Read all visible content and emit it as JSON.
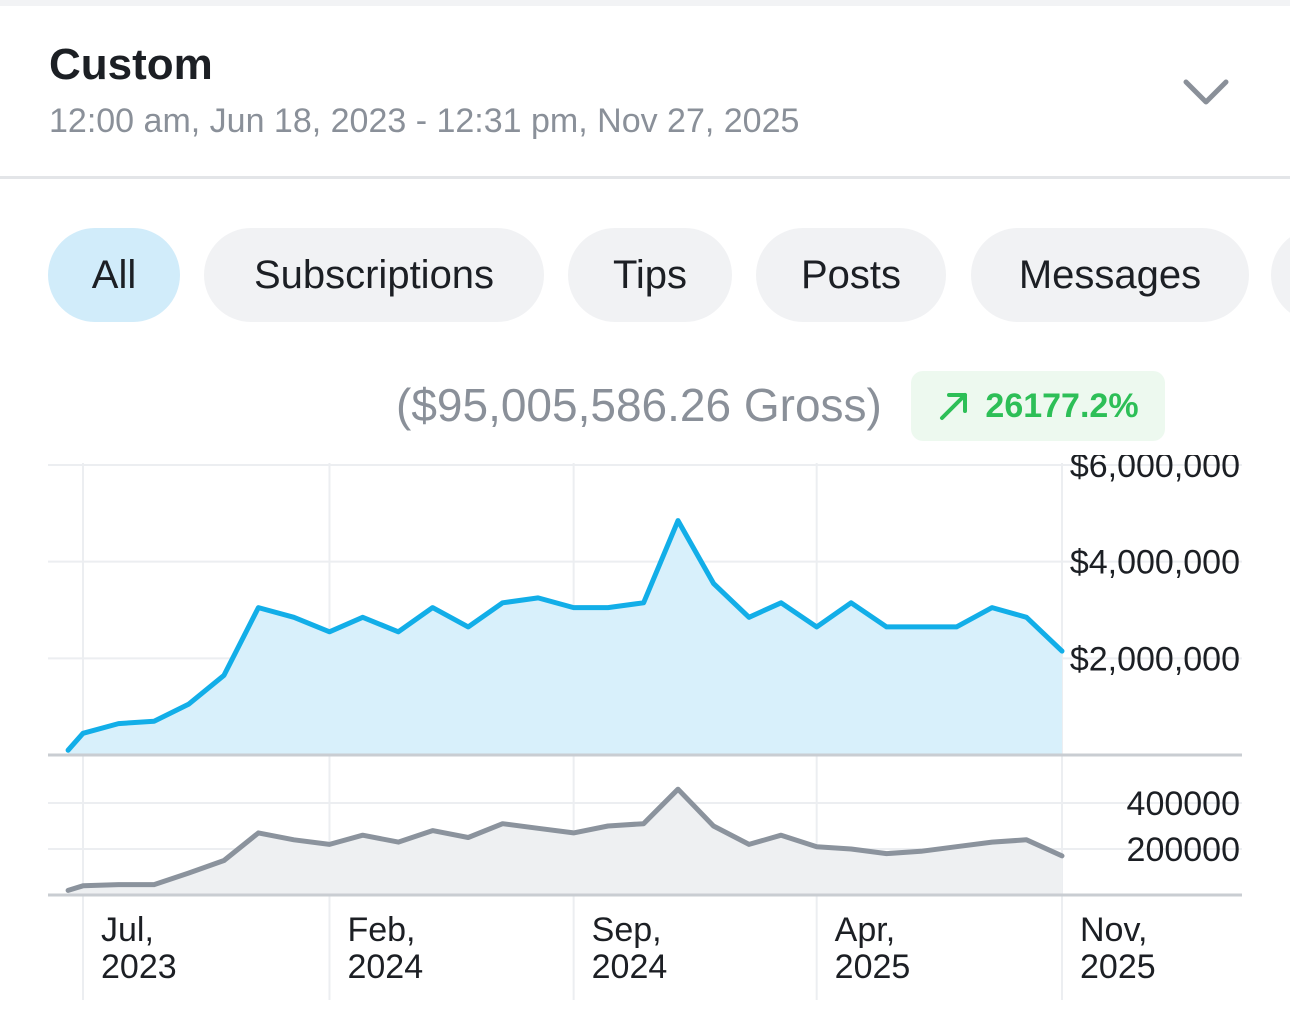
{
  "header": {
    "title": "Custom",
    "date_range": "12:00 am, Jun 18, 2023 - 12:31 pm, Nov 27, 2025",
    "dropdown_icon": "chevron-down-icon"
  },
  "tabs": [
    {
      "label": "All",
      "active": true
    },
    {
      "label": "Subscriptions",
      "active": false
    },
    {
      "label": "Tips",
      "active": false
    },
    {
      "label": "Posts",
      "active": false
    },
    {
      "label": "Messages",
      "active": false
    }
  ],
  "summary": {
    "gross_text": "($95,005,586.26 Gross)",
    "change_text": "26177.2%",
    "change_icon": "arrow-up-right-icon",
    "change_color": "#2dbf57"
  },
  "colors": {
    "main_line": "#12aee8",
    "main_fill": "#d8f0fb",
    "secondary_line": "#8b939d",
    "secondary_fill": "#eef0f2",
    "active_tab": "#d1ecfa"
  },
  "chart_data": [
    {
      "type": "area",
      "x_ticks": [
        {
          "label": [
            "Jul,",
            "2023"
          ],
          "date": "2023-07-01"
        },
        {
          "label": [
            "Feb,",
            "2024"
          ],
          "date": "2024-02-01"
        },
        {
          "label": [
            "Sep,",
            "2024"
          ],
          "date": "2024-09-01"
        },
        {
          "label": [
            "Apr,",
            "2025"
          ],
          "date": "2025-04-01"
        },
        {
          "label": [
            "Nov,",
            "2025"
          ],
          "date": "2025-11-01"
        }
      ],
      "x": [
        "2023-06-18",
        "2023-07-01",
        "2023-08-01",
        "2023-09-01",
        "2023-10-01",
        "2023-11-01",
        "2023-12-01",
        "2024-01-01",
        "2024-02-01",
        "2024-03-01",
        "2024-04-01",
        "2024-05-01",
        "2024-06-01",
        "2024-07-01",
        "2024-08-01",
        "2024-09-01",
        "2024-10-01",
        "2024-11-01",
        "2024-12-01",
        "2025-01-01",
        "2025-02-01",
        "2025-03-01",
        "2025-04-01",
        "2025-05-01",
        "2025-06-01",
        "2025-07-01",
        "2025-08-01",
        "2025-09-01",
        "2025-10-01",
        "2025-11-01"
      ],
      "values": [
        100000,
        450000,
        650000,
        700000,
        1050000,
        1650000,
        3050000,
        2850000,
        2550000,
        2850000,
        2550000,
        3050000,
        2650000,
        3150000,
        3250000,
        3050000,
        3050000,
        3150000,
        4850000,
        3550000,
        2850000,
        3150000,
        2650000,
        3150000,
        2650000,
        2650000,
        2650000,
        3050000,
        2850000,
        2150000
      ],
      "y_ticks": [
        {
          "label": "$2,000,000",
          "value": 2000000
        },
        {
          "label": "$4,000,000",
          "value": 4000000
        },
        {
          "label": "$6,000,000",
          "value": 6000000
        }
      ],
      "ylim": [
        0,
        6000000
      ],
      "grid": true
    },
    {
      "type": "area",
      "values": [
        20000,
        40000,
        45000,
        45000,
        95000,
        150000,
        270000,
        240000,
        220000,
        260000,
        230000,
        280000,
        250000,
        310000,
        290000,
        270000,
        300000,
        310000,
        460000,
        300000,
        220000,
        260000,
        210000,
        200000,
        180000,
        190000,
        210000,
        230000,
        240000,
        170000
      ],
      "y_ticks": [
        {
          "label": "200000",
          "value": 200000
        },
        {
          "label": "400000",
          "value": 400000
        }
      ],
      "ylim": [
        0,
        500000
      ],
      "grid": true
    }
  ]
}
